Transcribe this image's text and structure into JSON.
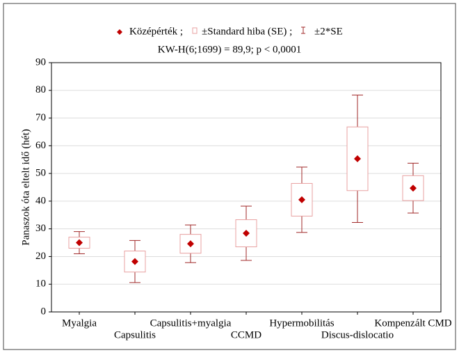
{
  "chart_data": {
    "type": "mean-se-box",
    "legend": {
      "mean": "Középérték ;",
      "se": "±Standard hiba (SE) ;",
      "se2": "±2*SE"
    },
    "subtitle": "KW-H(6;1699) = 89,9; p < 0,0001",
    "y_label": "Panaszok óta eltelt idő (hét)",
    "categories": [
      "Myalgia",
      "Capsulitis",
      "Capsulitis+myalgia",
      "CCMD",
      "Hypermobilitás",
      "Discus-dislocatio",
      "Kompenzált CMD"
    ],
    "means": [
      25,
      18.2,
      24.6,
      28.4,
      40.5,
      55.3,
      44.7
    ],
    "se": [
      2,
      3.8,
      3.4,
      4.9,
      5.9,
      11.5,
      4.5
    ],
    "mean_color": "#c00000",
    "box_color": "#e8a0a0",
    "whisker_color": "#a02828",
    "ylim": [
      0,
      90
    ],
    "yticks": [
      0,
      10,
      20,
      30,
      40,
      50,
      60,
      70,
      80,
      90
    ],
    "grid": true
  }
}
